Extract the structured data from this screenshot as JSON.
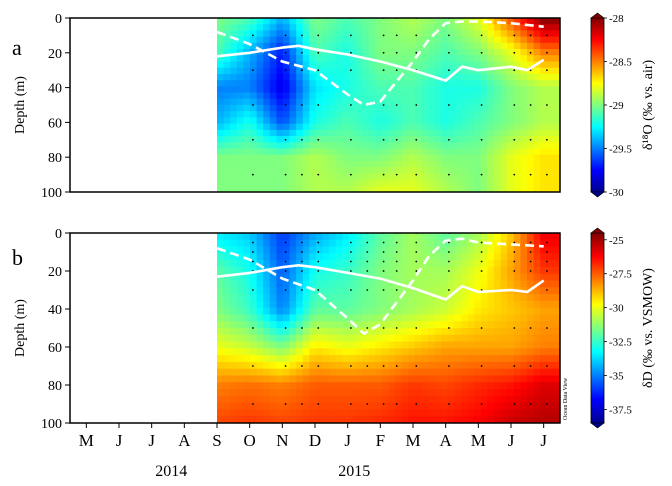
{
  "chart_data": [
    {
      "panel_label": "a",
      "type": "heatmap",
      "ylabel": "Depth (m)",
      "yticks": [
        0,
        20,
        40,
        60,
        80,
        100
      ],
      "ylim": [
        0,
        100
      ],
      "y_inverted": true,
      "colorbar": {
        "label": "δ¹⁸O (‰ vs. air)",
        "ticks": [
          -28,
          -28.5,
          -29,
          -29.5,
          -30
        ],
        "range": [
          -30,
          -28
        ]
      },
      "data_start_month": 8,
      "field": {
        "months": [
          8,
          9,
          10,
          11,
          12,
          13,
          14,
          15,
          16,
          17,
          18
        ],
        "depths": [
          0,
          20,
          40,
          60,
          80,
          100
        ],
        "grid": [
          [
            -29.0,
            -29.1,
            -29.4,
            -29.0,
            -29.1,
            -29.0,
            -28.9,
            -29.0,
            -28.8,
            -28.4,
            -28.0
          ],
          [
            -29.1,
            -29.4,
            -29.7,
            -29.1,
            -29.2,
            -29.0,
            -29.0,
            -29.1,
            -29.0,
            -28.8,
            -28.5
          ],
          [
            -29.5,
            -29.5,
            -29.8,
            -29.3,
            -29.2,
            -29.1,
            -29.1,
            -29.2,
            -29.2,
            -29.0,
            -28.9
          ],
          [
            -29.4,
            -29.2,
            -29.6,
            -29.2,
            -29.1,
            -29.2,
            -29.1,
            -29.2,
            -29.1,
            -29.0,
            -28.9
          ],
          [
            -29.0,
            -29.0,
            -29.0,
            -28.9,
            -29.0,
            -29.0,
            -28.9,
            -29.0,
            -29.0,
            -28.8,
            -28.7
          ],
          [
            -29.0,
            -29.0,
            -29.0,
            -28.9,
            -28.9,
            -28.8,
            -28.8,
            -28.9,
            -29.0,
            -28.8,
            -28.7
          ]
        ]
      },
      "sample_points": {
        "months": [
          9.1,
          10.1,
          10.6,
          11.1,
          12.1,
          13.1,
          13.5,
          14.1,
          15.1,
          16.1,
          17.1,
          17.6,
          18.1
        ],
        "depths": [
          0,
          10,
          20,
          30,
          50,
          70,
          90
        ]
      },
      "mixed_layer_solid": {
        "x": [
          8,
          9,
          10,
          10.5,
          11,
          12,
          13,
          14,
          15,
          15.5,
          16,
          17,
          17.5,
          18
        ],
        "y": [
          22,
          20,
          17,
          16,
          18,
          21,
          25,
          30,
          36,
          28,
          30,
          28,
          30,
          24
        ]
      },
      "thermocline_dashed": {
        "x": [
          8,
          9,
          10,
          11,
          12,
          12.5,
          13,
          14,
          14.5,
          15,
          15.5,
          16,
          17,
          18
        ],
        "y": [
          8,
          15,
          25,
          30,
          44,
          50,
          48,
          25,
          12,
          3,
          2,
          2,
          3,
          5
        ]
      }
    },
    {
      "panel_label": "b",
      "type": "heatmap",
      "ylabel": "Depth (m)",
      "yticks": [
        0,
        20,
        40,
        60,
        80,
        100
      ],
      "ylim": [
        0,
        100
      ],
      "y_inverted": true,
      "xtick_labels": [
        "M",
        "J",
        "J",
        "A",
        "S",
        "O",
        "N",
        "D",
        "J",
        "F",
        "M",
        "A",
        "M",
        "J",
        "J"
      ],
      "year_labels": [
        "2014",
        "2015"
      ],
      "watermark": "Ocean Data View",
      "colorbar": {
        "label": "δD (‰ vs. VSMOW)",
        "ticks": [
          -25,
          -27.5,
          -30,
          -32.5,
          -35,
          -37.5
        ],
        "range": [
          -38.5,
          -24.5
        ]
      },
      "data_start_month": 8,
      "field": {
        "months": [
          8,
          9,
          10,
          11,
          12,
          13,
          14,
          15,
          16,
          17,
          18
        ],
        "depths": [
          0,
          20,
          40,
          60,
          80,
          100
        ],
        "grid": [
          [
            -33.5,
            -34.0,
            -36.0,
            -34.5,
            -33.5,
            -32.0,
            -31.0,
            -32.0,
            -31.0,
            -29.0,
            -26.0
          ],
          [
            -32.0,
            -33.0,
            -35.5,
            -33.0,
            -32.5,
            -31.5,
            -31.0,
            -31.0,
            -30.0,
            -28.5,
            -27.0
          ],
          [
            -31.5,
            -32.5,
            -35.0,
            -32.0,
            -32.0,
            -31.5,
            -31.0,
            -30.5,
            -29.5,
            -29.0,
            -28.5
          ],
          [
            -30.0,
            -30.5,
            -31.5,
            -29.5,
            -30.0,
            -29.5,
            -29.0,
            -28.5,
            -28.5,
            -28.5,
            -28.0
          ],
          [
            -28.0,
            -27.8,
            -28.0,
            -27.5,
            -27.5,
            -27.5,
            -27.0,
            -27.2,
            -26.8,
            -26.5,
            -25.8
          ],
          [
            -27.2,
            -27.0,
            -27.2,
            -27.0,
            -27.0,
            -26.8,
            -26.5,
            -26.5,
            -26.2,
            -25.5,
            -25.2
          ]
        ]
      },
      "sample_points": {
        "months": [
          9.1,
          10.1,
          10.6,
          11.1,
          12.1,
          12.6,
          13.1,
          13.5,
          14.1,
          15.1,
          16.1,
          17.1,
          17.6,
          18.1
        ],
        "depths": [
          0,
          5,
          10,
          15,
          20,
          30,
          50,
          70,
          90
        ]
      },
      "mixed_layer_solid": {
        "x": [
          8,
          9,
          10,
          10.5,
          11,
          12,
          13,
          14,
          15,
          15.5,
          16,
          17,
          17.5,
          18
        ],
        "y": [
          23,
          21,
          18,
          17,
          18,
          21,
          24,
          29,
          35,
          28,
          31,
          30,
          31,
          25
        ]
      },
      "thermocline_dashed": {
        "x": [
          8,
          9,
          10,
          11,
          12,
          12.5,
          13,
          14,
          14.5,
          15,
          15.5,
          16,
          17,
          18
        ],
        "y": [
          8,
          14,
          24,
          30,
          45,
          53,
          48,
          25,
          12,
          4,
          3,
          5,
          6,
          7
        ]
      }
    }
  ]
}
